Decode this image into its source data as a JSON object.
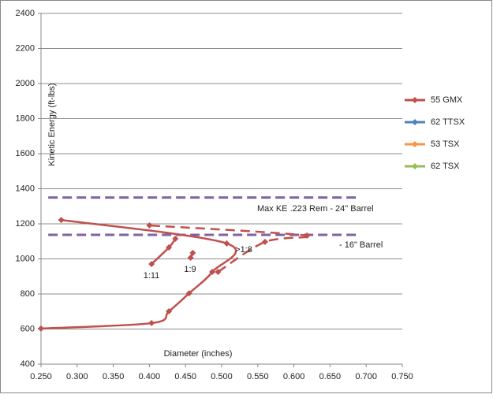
{
  "chart_data": {
    "type": "scatter",
    "x_label": "Diameter (inches)",
    "y_label": "Kinetic Energy (ft-lbs)",
    "xlim": [
      0.25,
      0.75
    ],
    "xticks": [
      {
        "value": 0.25,
        "label": "0.250"
      },
      {
        "value": 0.3,
        "label": "0.300"
      },
      {
        "value": 0.35,
        "label": "0.350"
      },
      {
        "value": 0.4,
        "label": "0.400"
      },
      {
        "value": 0.45,
        "label": "0.450"
      },
      {
        "value": 0.5,
        "label": "0.500"
      },
      {
        "value": 0.55,
        "label": "0.550"
      },
      {
        "value": 0.6,
        "label": "0.600"
      },
      {
        "value": 0.65,
        "label": "0.650"
      },
      {
        "value": 0.7,
        "label": "0.700"
      },
      {
        "value": 0.75,
        "label": "0.750"
      }
    ],
    "ylim": [
      400,
      2400
    ],
    "yticks": [
      400,
      600,
      800,
      1000,
      1200,
      1400,
      1600,
      1800,
      2000,
      2200,
      2400
    ],
    "grid": true,
    "smooth": true,
    "legend": "right",
    "series": [
      {
        "name": "55 GMX",
        "color": "#c0504d",
        "x": [
          0.25,
          0.403,
          0.427,
          0.455,
          0.487,
          0.507,
          0.278
        ],
        "values": [
          603,
          634,
          701,
          804,
          926,
          1088,
          1222
        ]
      },
      {
        "name": "62 TTSX",
        "color": "#4f81bd",
        "x": [],
        "values": []
      },
      {
        "name": "53 TSX",
        "color": "#f79646",
        "x": [],
        "values": []
      },
      {
        "name": "62 TSX",
        "color": "#9bbb59",
        "x": [],
        "values": []
      },
      {
        "color": "#c0504d",
        "dashed": true,
        "x": [
          0.495,
          0.56,
          0.618,
          0.4
        ],
        "values": [
          926,
          1097,
          1133,
          1191
        ]
      },
      {
        "color": "#c0504d",
        "x": [
          0.403,
          0.427,
          0.436
        ],
        "values": [
          971,
          1065,
          1115
        ]
      },
      {
        "color": "#c0504d",
        "x": [
          0.457,
          0.46
        ],
        "values": [
          1007,
          1034
        ]
      }
    ],
    "reference_lines": [
      {
        "y": 1350,
        "xlim": [
          0.26,
          0.69
        ],
        "color": "#8064a2",
        "label": "Max KE .223 Rem - 24\" Barrel"
      },
      {
        "y": 1137,
        "xlim": [
          0.26,
          0.69
        ],
        "color": "#8064a2",
        "label": "- 16\" Barrel"
      }
    ],
    "annotations": [
      "1:11",
      "1:9",
      ">1:8"
    ]
  }
}
